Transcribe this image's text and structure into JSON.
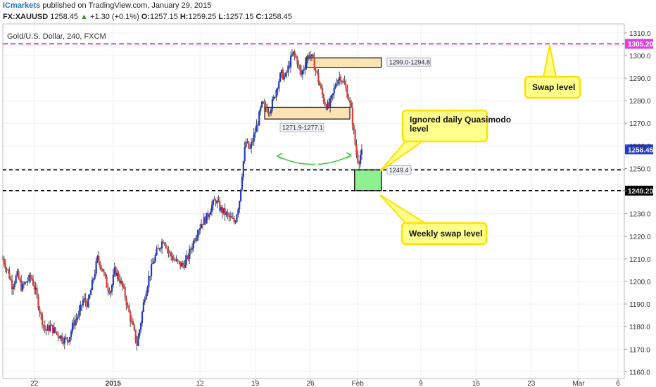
{
  "header": {
    "brand": "ICmarkets",
    "published_text": "published on TradingView.com, January 29, 2015",
    "symbol": "FX:XAUUSD",
    "last": "1258.45",
    "change_arrow": "▲",
    "change": "+1.30 (+0.1%)",
    "open_label": "O:",
    "open": "1257.15",
    "high_label": "H:",
    "high": "1259.25",
    "low_label": "L:",
    "low": "1257.15",
    "close_label": "C:",
    "close": "1258.45"
  },
  "chart_data": {
    "type": "candlestick",
    "title": "Gold/U.S. Dollar, 240, FXCM",
    "ylim": [
      1157,
      1314
    ],
    "y_ticks": [
      1160,
      1170,
      1180,
      1190,
      1200,
      1210,
      1220,
      1230,
      1240,
      1250,
      1260,
      1270,
      1280,
      1290,
      1300,
      1310
    ],
    "x_ticks": [
      {
        "label": "22",
        "day": -10
      },
      {
        "label": "2015",
        "day": 0,
        "bold": true
      },
      {
        "label": "12",
        "day": 11
      },
      {
        "label": "19",
        "day": 18
      },
      {
        "label": "26",
        "day": 25
      },
      {
        "label": "Feb",
        "day": 31
      },
      {
        "label": "9",
        "day": 39
      },
      {
        "label": "16",
        "day": 46
      },
      {
        "label": "23",
        "day": 53
      },
      {
        "label": "Mar",
        "day": 59
      },
      {
        "label": "6",
        "day": 64
      }
    ],
    "x_day_range": [
      -14,
      64.8
    ],
    "grid": true,
    "colors": {
      "up": "#1f3ad1",
      "down": "#e53935",
      "grid": "#edf0f4",
      "swap_line": "#e040e0"
    },
    "price_path": [
      [
        -14.0,
        1210
      ],
      [
        -13.4,
        1205
      ],
      [
        -12.8,
        1198
      ],
      [
        -12.2,
        1203
      ],
      [
        -11.6,
        1197
      ],
      [
        -11.0,
        1200
      ],
      [
        -10.4,
        1202
      ],
      [
        -9.8,
        1195
      ],
      [
        -9.2,
        1185
      ],
      [
        -8.6,
        1178
      ],
      [
        -8.0,
        1180
      ],
      [
        -7.4,
        1178
      ],
      [
        -6.8,
        1176
      ],
      [
        -6.2,
        1174
      ],
      [
        -5.6,
        1175
      ],
      [
        -5.0,
        1182
      ],
      [
        -4.4,
        1185
      ],
      [
        -3.8,
        1192
      ],
      [
        -3.2,
        1190
      ],
      [
        -2.6,
        1200
      ],
      [
        -2.0,
        1210
      ],
      [
        -1.4,
        1206
      ],
      [
        -0.8,
        1198
      ],
      [
        -0.3,
        1196
      ],
      [
        0.2,
        1205
      ],
      [
        0.8,
        1201
      ],
      [
        1.4,
        1195
      ],
      [
        2.0,
        1186
      ],
      [
        2.6,
        1178
      ],
      [
        3.0,
        1172
      ],
      [
        3.4,
        1180
      ],
      [
        4.0,
        1194
      ],
      [
        4.6,
        1203
      ],
      [
        5.2,
        1210
      ],
      [
        5.8,
        1215
      ],
      [
        6.4,
        1219
      ],
      [
        7.0,
        1213
      ],
      [
        7.6,
        1210
      ],
      [
        8.2,
        1208
      ],
      [
        8.8,
        1207
      ],
      [
        9.4,
        1210
      ],
      [
        10.0,
        1216
      ],
      [
        10.6,
        1222
      ],
      [
        11.2,
        1226
      ],
      [
        11.8,
        1228
      ],
      [
        12.4,
        1233
      ],
      [
        13.0,
        1236
      ],
      [
        13.6,
        1232
      ],
      [
        14.2,
        1230
      ],
      [
        14.8,
        1228
      ],
      [
        15.4,
        1226
      ],
      [
        16.0,
        1236
      ],
      [
        16.4,
        1250
      ],
      [
        16.8,
        1262
      ],
      [
        17.3,
        1258
      ],
      [
        17.8,
        1264
      ],
      [
        18.3,
        1270
      ],
      [
        18.8,
        1278
      ],
      [
        19.3,
        1277
      ],
      [
        19.8,
        1276
      ],
      [
        20.3,
        1280
      ],
      [
        20.8,
        1287
      ],
      [
        21.3,
        1292
      ],
      [
        21.8,
        1290
      ],
      [
        22.3,
        1296
      ],
      [
        22.8,
        1301
      ],
      [
        23.3,
        1298
      ],
      [
        23.8,
        1291
      ],
      [
        24.3,
        1296
      ],
      [
        24.8,
        1301
      ],
      [
        25.3,
        1298
      ],
      [
        25.8,
        1292
      ],
      [
        26.3,
        1285
      ],
      [
        26.8,
        1279
      ],
      [
        27.3,
        1277
      ],
      [
        27.8,
        1282
      ],
      [
        28.3,
        1289
      ],
      [
        28.8,
        1291
      ],
      [
        29.3,
        1287
      ],
      [
        29.8,
        1282
      ],
      [
        30.2,
        1275
      ],
      [
        30.5,
        1266
      ],
      [
        30.8,
        1257
      ],
      [
        31.1,
        1253
      ],
      [
        31.4,
        1257
      ],
      [
        31.6,
        1258.45
      ]
    ],
    "zones": [
      {
        "label": "1299.0-1294.8",
        "top": 1299.0,
        "bottom": 1294.8,
        "day_start": 24.4,
        "day_end": 34.0
      },
      {
        "label": "1271.9-1277.1",
        "top": 1277.1,
        "bottom": 1271.9,
        "day_start": 19.2,
        "day_end": 30.0
      }
    ],
    "levels": [
      {
        "label": "1305.20",
        "value": 1305.2,
        "style": "swap"
      },
      {
        "label": "1249.4",
        "value": 1249.4,
        "style": "dashed"
      },
      {
        "label": "1240.20",
        "value": 1240.2,
        "style": "dashed"
      }
    ],
    "green_zone": {
      "top": 1249.4,
      "bottom": 1240.2,
      "day_start": 30.6,
      "day_end": 34.0
    },
    "last_price": {
      "label": "1258.45",
      "value": 1258.45
    },
    "annotations": [
      {
        "text": "Swap level"
      },
      {
        "text": "Ignored daily Quasimodo level"
      },
      {
        "text": "Weekly swap level"
      }
    ]
  }
}
